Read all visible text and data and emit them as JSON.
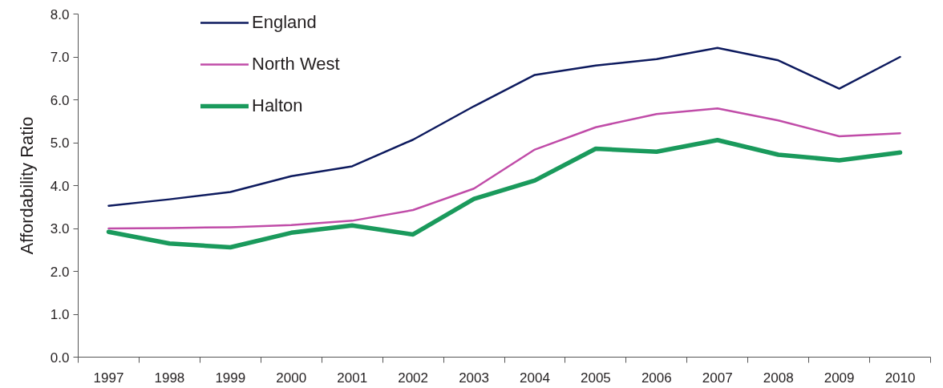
{
  "chart_data": {
    "type": "line",
    "ylabel": "Affordability Ratio",
    "categories": [
      "1997",
      "1998",
      "1999",
      "2000",
      "2001",
      "2002",
      "2003",
      "2004",
      "2005",
      "2006",
      "2007",
      "2008",
      "2009",
      "2010"
    ],
    "series": [
      {
        "name": "England",
        "color": "#0d1a5e",
        "values": [
          3.53,
          3.68,
          3.85,
          4.22,
          4.45,
          5.07,
          5.85,
          6.58,
          6.8,
          6.95,
          7.21,
          6.92,
          6.26,
          7.0
        ]
      },
      {
        "name": "North West",
        "color": "#c04ca8",
        "values": [
          3.0,
          3.01,
          3.03,
          3.08,
          3.18,
          3.43,
          3.93,
          4.84,
          5.36,
          5.67,
          5.8,
          5.52,
          5.15,
          5.22
        ]
      },
      {
        "name": "Halton",
        "color": "#1a9a5c",
        "values": [
          2.92,
          2.65,
          2.56,
          2.9,
          3.07,
          2.86,
          3.69,
          4.12,
          4.86,
          4.79,
          5.06,
          4.72,
          4.59,
          4.77
        ]
      }
    ],
    "ylim": [
      0,
      8
    ],
    "yticks": [
      {
        "value": 0,
        "label": "0.0"
      },
      {
        "value": 1,
        "label": "1.0"
      },
      {
        "value": 2,
        "label": "2.0"
      },
      {
        "value": 3,
        "label": "3.0"
      },
      {
        "value": 4,
        "label": "4.0"
      },
      {
        "value": 5,
        "label": "5.0"
      },
      {
        "value": 6,
        "label": "6.0"
      },
      {
        "value": 7,
        "label": "7.0"
      },
      {
        "value": 8,
        "label": "8.0"
      }
    ],
    "grid": false,
    "legend": "top left",
    "marker": "none",
    "line_style": "solid"
  }
}
